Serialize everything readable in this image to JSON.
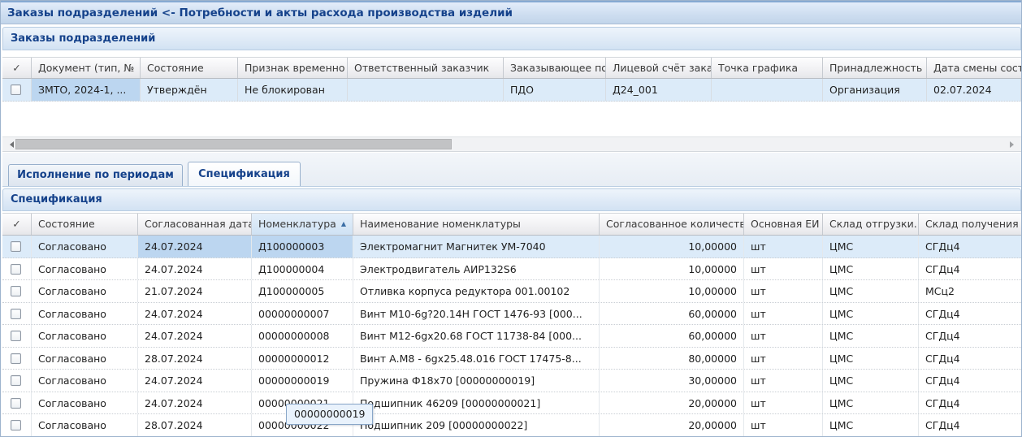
{
  "window": {
    "title": "Заказы подразделений <- Потребности и акты расхода производства изделий"
  },
  "colors": {
    "accent_text": "#15428b",
    "selected_row": "#dcebf9",
    "selected_cell": "#bcd6f0",
    "sorted_header": "#d6e6f6",
    "tooltip_border": "#88a6c8"
  },
  "orders": {
    "title": "Заказы подразделений",
    "check_glyph": "✓",
    "columns": [
      "Документ (тип, №",
      "Состояние",
      "Признак временно",
      "Ответственный заказчик",
      "Заказывающее под",
      "Лицевой счёт зака",
      "Точка графика",
      "Принадлежность",
      "Дата смены сост"
    ],
    "row": {
      "doc": "ЗМТО, 2024-1, ...",
      "state": "Утверждён",
      "block": "Не блокирован",
      "responsible": "",
      "orderer": "ПДО",
      "account": "Д24_001",
      "schedule_point": "",
      "ownership": "Организация",
      "state_date": "02.07.2024"
    }
  },
  "tabs": [
    {
      "label": "Исполнение по периодам",
      "active": false
    },
    {
      "label": "Спецификация",
      "active": true
    }
  ],
  "spec": {
    "title": "Спецификация",
    "check_glyph": "✓",
    "sort_glyph": "▲",
    "columns": [
      "Состояние",
      "Согласованная дата",
      "Номенклатура",
      "Наименование номенклатуры",
      "Согласованное количестве",
      "Основная ЕИ",
      "Склад отгрузки.",
      "Склад получения"
    ],
    "rows": [
      {
        "state": "Согласовано",
        "date": "24.07.2024",
        "code": "Д100000003",
        "name": "Электромагнит Магнитек УМ-7040",
        "qty": "10,00000",
        "unit": "шт",
        "ship": "ЦМС",
        "recv": "СГДц4"
      },
      {
        "state": "Согласовано",
        "date": "24.07.2024",
        "code": "Д100000004",
        "name": "Электродвигатель АИР132S6",
        "qty": "10,00000",
        "unit": "шт",
        "ship": "ЦМС",
        "recv": "СГДц4"
      },
      {
        "state": "Согласовано",
        "date": "21.07.2024",
        "code": "Д100000005",
        "name": "Отливка корпуса редуктора 001.00102",
        "qty": "10,00000",
        "unit": "шт",
        "ship": "ЦМС",
        "recv": "МСц2"
      },
      {
        "state": "Согласовано",
        "date": "24.07.2024",
        "code": "00000000007",
        "name": "Винт М10-6g?20.14Н ГОСТ 1476-93 [000...",
        "qty": "60,00000",
        "unit": "шт",
        "ship": "ЦМС",
        "recv": "СГДц4"
      },
      {
        "state": "Согласовано",
        "date": "24.07.2024",
        "code": "00000000008",
        "name": "Винт М12-6gx20.68 ГОСТ 11738-84 [000...",
        "qty": "60,00000",
        "unit": "шт",
        "ship": "ЦМС",
        "recv": "СГДц4"
      },
      {
        "state": "Согласовано",
        "date": "28.07.2024",
        "code": "00000000012",
        "name": "Винт А.М8 - 6gx25.48.016 ГОСТ 17475-8...",
        "qty": "80,00000",
        "unit": "шт",
        "ship": "ЦМС",
        "recv": "СГДц4"
      },
      {
        "state": "Согласовано",
        "date": "24.07.2024",
        "code": "00000000019",
        "name": "Пружина Ф18х70 [00000000019]",
        "qty": "30,00000",
        "unit": "шт",
        "ship": "ЦМС",
        "recv": "СГДц4"
      },
      {
        "state": "Согласовано",
        "date": "24.07.2024",
        "code": "00000000021",
        "name": "Подшипник 46209 [00000000021]",
        "qty": "20,00000",
        "unit": "шт",
        "ship": "ЦМС",
        "recv": "СГДц4"
      },
      {
        "state": "Согласовано",
        "date": "28.07.2024",
        "code": "00000000022",
        "name": "Подшипник 209 [00000000022]",
        "qty": "20,00000",
        "unit": "шт",
        "ship": "ЦМС",
        "recv": "СГДц4"
      }
    ]
  },
  "tooltip": {
    "text": "00000000019"
  }
}
